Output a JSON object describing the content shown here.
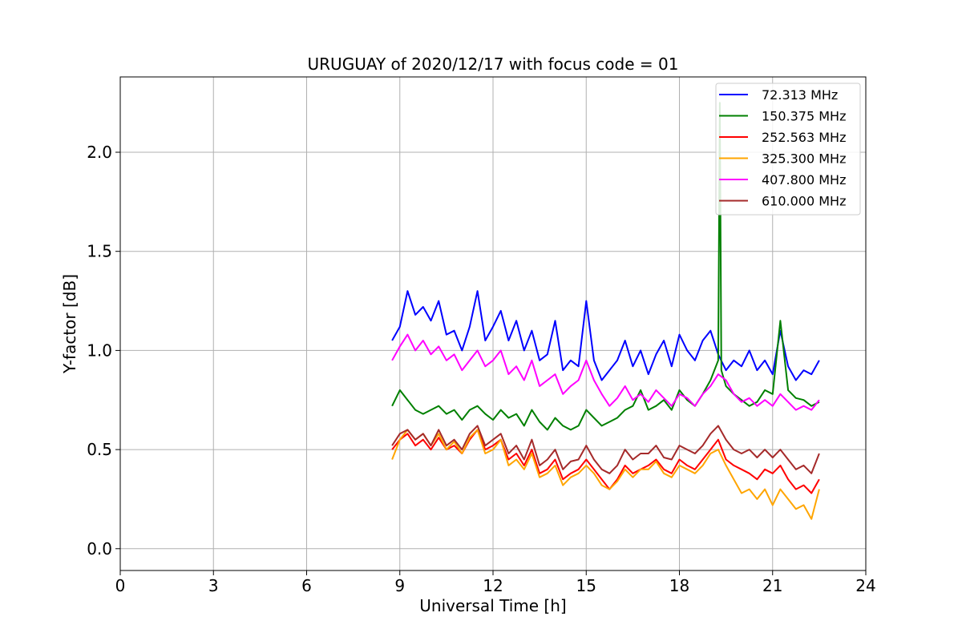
{
  "chart_data": {
    "type": "line",
    "title": "URUGUAY of 2020/12/17 with focus code = 01",
    "xlabel": "Universal Time [h]",
    "ylabel": "Y-factor [dB]",
    "xlim": [
      0,
      24
    ],
    "ylim": [
      -0.11,
      2.38
    ],
    "x_ticks": [
      0,
      3,
      6,
      9,
      12,
      15,
      18,
      21,
      24
    ],
    "y_ticks": [
      0.0,
      0.5,
      1.0,
      1.5,
      2.0
    ],
    "x_tick_labels": [
      "0",
      "3",
      "6",
      "9",
      "12",
      "15",
      "18",
      "21",
      "24"
    ],
    "y_tick_labels": [
      "0.0",
      "0.5",
      "1.0",
      "1.5",
      "2.0"
    ],
    "grid": true,
    "legend_position": "top-right",
    "series": [
      {
        "name": " 72.313 MHz",
        "color": "#0000ff",
        "x": [
          8.75,
          9.0,
          9.25,
          9.5,
          9.75,
          10.0,
          10.25,
          10.5,
          10.75,
          11.0,
          11.25,
          11.5,
          11.75,
          12.0,
          12.25,
          12.5,
          12.75,
          13.0,
          13.25,
          13.5,
          13.75,
          14.0,
          14.25,
          14.5,
          14.75,
          15.0,
          15.25,
          15.5,
          15.75,
          16.0,
          16.25,
          16.5,
          16.75,
          17.0,
          17.25,
          17.5,
          17.75,
          18.0,
          18.25,
          18.5,
          18.75,
          19.0,
          19.25,
          19.5,
          19.75,
          20.0,
          20.25,
          20.5,
          20.75,
          21.0,
          21.25,
          21.5,
          21.75,
          22.0,
          22.25,
          22.5
        ],
        "y": [
          1.05,
          1.12,
          1.3,
          1.18,
          1.22,
          1.15,
          1.25,
          1.08,
          1.1,
          1.0,
          1.12,
          1.3,
          1.05,
          1.12,
          1.2,
          1.05,
          1.15,
          1.0,
          1.1,
          0.95,
          0.98,
          1.15,
          0.9,
          0.95,
          0.92,
          1.25,
          0.95,
          0.85,
          0.9,
          0.95,
          1.05,
          0.92,
          1.0,
          0.88,
          0.98,
          1.05,
          0.92,
          1.08,
          1.0,
          0.95,
          1.05,
          1.1,
          0.98,
          0.9,
          0.95,
          0.92,
          1.0,
          0.9,
          0.95,
          0.88,
          1.1,
          0.92,
          0.85,
          0.9,
          0.88,
          0.95
        ]
      },
      {
        "name": "150.375 MHz",
        "color": "#008000",
        "x": [
          8.75,
          9.0,
          9.25,
          9.5,
          9.75,
          10.0,
          10.25,
          10.5,
          10.75,
          11.0,
          11.25,
          11.5,
          11.75,
          12.0,
          12.25,
          12.5,
          12.75,
          13.0,
          13.25,
          13.5,
          13.75,
          14.0,
          14.25,
          14.5,
          14.75,
          15.0,
          15.25,
          15.5,
          15.75,
          16.0,
          16.25,
          16.5,
          16.75,
          17.0,
          17.25,
          17.5,
          17.75,
          18.0,
          18.25,
          18.5,
          18.75,
          19.0,
          19.25,
          19.3,
          19.35,
          19.5,
          19.75,
          20.0,
          20.25,
          20.5,
          20.75,
          21.0,
          21.25,
          21.5,
          21.75,
          22.0,
          22.25,
          22.5
        ],
        "y": [
          0.72,
          0.8,
          0.75,
          0.7,
          0.68,
          0.7,
          0.72,
          0.68,
          0.7,
          0.65,
          0.7,
          0.72,
          0.68,
          0.65,
          0.7,
          0.66,
          0.68,
          0.62,
          0.7,
          0.64,
          0.6,
          0.66,
          0.62,
          0.6,
          0.62,
          0.7,
          0.66,
          0.62,
          0.64,
          0.66,
          0.7,
          0.72,
          0.8,
          0.7,
          0.72,
          0.75,
          0.7,
          0.8,
          0.75,
          0.72,
          0.78,
          0.85,
          0.95,
          2.25,
          0.9,
          0.82,
          0.78,
          0.75,
          0.72,
          0.74,
          0.8,
          0.78,
          1.15,
          0.8,
          0.76,
          0.75,
          0.72,
          0.74
        ]
      },
      {
        "name": "252.563 MHz",
        "color": "#ff0000",
        "x": [
          8.75,
          9.0,
          9.25,
          9.5,
          9.75,
          10.0,
          10.25,
          10.5,
          10.75,
          11.0,
          11.25,
          11.5,
          11.75,
          12.0,
          12.25,
          12.5,
          12.75,
          13.0,
          13.25,
          13.5,
          13.75,
          14.0,
          14.25,
          14.5,
          14.75,
          15.0,
          15.25,
          15.5,
          15.75,
          16.0,
          16.25,
          16.5,
          16.75,
          17.0,
          17.25,
          17.5,
          17.75,
          18.0,
          18.25,
          18.5,
          18.75,
          19.0,
          19.25,
          19.5,
          19.75,
          20.0,
          20.25,
          20.5,
          20.75,
          21.0,
          21.25,
          21.5,
          21.75,
          22.0,
          22.25,
          22.5
        ],
        "y": [
          0.5,
          0.55,
          0.58,
          0.52,
          0.55,
          0.5,
          0.56,
          0.5,
          0.52,
          0.48,
          0.55,
          0.6,
          0.5,
          0.52,
          0.55,
          0.45,
          0.48,
          0.42,
          0.5,
          0.38,
          0.4,
          0.45,
          0.35,
          0.38,
          0.4,
          0.45,
          0.4,
          0.35,
          0.3,
          0.35,
          0.42,
          0.38,
          0.4,
          0.42,
          0.45,
          0.4,
          0.38,
          0.45,
          0.42,
          0.4,
          0.45,
          0.5,
          0.55,
          0.45,
          0.42,
          0.4,
          0.38,
          0.35,
          0.4,
          0.38,
          0.42,
          0.35,
          0.3,
          0.32,
          0.28,
          0.35
        ]
      },
      {
        "name": "325.300 MHz",
        "color": "#ffa500",
        "x": [
          8.75,
          9.0,
          9.25,
          9.5,
          9.75,
          10.0,
          10.25,
          10.5,
          10.75,
          11.0,
          11.25,
          11.5,
          11.75,
          12.0,
          12.25,
          12.5,
          12.75,
          13.0,
          13.25,
          13.5,
          13.75,
          14.0,
          14.25,
          14.5,
          14.75,
          15.0,
          15.25,
          15.5,
          15.75,
          16.0,
          16.25,
          16.5,
          16.75,
          17.0,
          17.25,
          17.5,
          17.75,
          18.0,
          18.25,
          18.5,
          18.75,
          19.0,
          19.25,
          19.5,
          19.75,
          20.0,
          20.25,
          20.5,
          20.75,
          21.0,
          21.25,
          21.5,
          21.75,
          22.0,
          22.25,
          22.5
        ],
        "y": [
          0.45,
          0.55,
          0.6,
          0.55,
          0.58,
          0.52,
          0.58,
          0.5,
          0.54,
          0.48,
          0.56,
          0.6,
          0.48,
          0.5,
          0.55,
          0.42,
          0.45,
          0.4,
          0.48,
          0.36,
          0.38,
          0.42,
          0.32,
          0.36,
          0.38,
          0.42,
          0.38,
          0.32,
          0.3,
          0.34,
          0.4,
          0.36,
          0.4,
          0.4,
          0.44,
          0.38,
          0.36,
          0.42,
          0.4,
          0.38,
          0.42,
          0.48,
          0.5,
          0.42,
          0.35,
          0.28,
          0.3,
          0.25,
          0.3,
          0.22,
          0.3,
          0.25,
          0.2,
          0.22,
          0.15,
          0.3
        ]
      },
      {
        "name": "407.800 MHz",
        "color": "#ff00ff",
        "x": [
          8.75,
          9.0,
          9.25,
          9.5,
          9.75,
          10.0,
          10.25,
          10.5,
          10.75,
          11.0,
          11.25,
          11.5,
          11.75,
          12.0,
          12.25,
          12.5,
          12.75,
          13.0,
          13.25,
          13.5,
          13.75,
          14.0,
          14.25,
          14.5,
          14.75,
          15.0,
          15.25,
          15.5,
          15.75,
          16.0,
          16.25,
          16.5,
          16.75,
          17.0,
          17.25,
          17.5,
          17.75,
          18.0,
          18.25,
          18.5,
          18.75,
          19.0,
          19.25,
          19.5,
          19.75,
          20.0,
          20.25,
          20.5,
          20.75,
          21.0,
          21.25,
          21.5,
          21.75,
          22.0,
          22.25,
          22.5
        ],
        "y": [
          0.95,
          1.02,
          1.08,
          1.0,
          1.05,
          0.98,
          1.02,
          0.95,
          0.98,
          0.9,
          0.95,
          1.0,
          0.92,
          0.95,
          1.0,
          0.88,
          0.92,
          0.85,
          0.95,
          0.82,
          0.85,
          0.88,
          0.78,
          0.82,
          0.85,
          0.95,
          0.85,
          0.78,
          0.72,
          0.76,
          0.82,
          0.75,
          0.78,
          0.74,
          0.8,
          0.76,
          0.72,
          0.78,
          0.76,
          0.72,
          0.78,
          0.82,
          0.88,
          0.85,
          0.78,
          0.74,
          0.76,
          0.72,
          0.75,
          0.72,
          0.78,
          0.74,
          0.7,
          0.72,
          0.7,
          0.75
        ]
      },
      {
        "name": "610.000 MHz",
        "color": "#a52a2a",
        "x": [
          8.75,
          9.0,
          9.25,
          9.5,
          9.75,
          10.0,
          10.25,
          10.5,
          10.75,
          11.0,
          11.25,
          11.5,
          11.75,
          12.0,
          12.25,
          12.5,
          12.75,
          13.0,
          13.25,
          13.5,
          13.75,
          14.0,
          14.25,
          14.5,
          14.75,
          15.0,
          15.25,
          15.5,
          15.75,
          16.0,
          16.25,
          16.5,
          16.75,
          17.0,
          17.25,
          17.5,
          17.75,
          18.0,
          18.25,
          18.5,
          18.75,
          19.0,
          19.25,
          19.5,
          19.75,
          20.0,
          20.25,
          20.5,
          20.75,
          21.0,
          21.25,
          21.5,
          21.75,
          22.0,
          22.25,
          22.5
        ],
        "y": [
          0.52,
          0.58,
          0.6,
          0.55,
          0.58,
          0.52,
          0.6,
          0.52,
          0.55,
          0.5,
          0.58,
          0.62,
          0.52,
          0.55,
          0.58,
          0.48,
          0.52,
          0.45,
          0.55,
          0.42,
          0.45,
          0.5,
          0.4,
          0.44,
          0.45,
          0.52,
          0.45,
          0.4,
          0.38,
          0.42,
          0.5,
          0.45,
          0.48,
          0.48,
          0.52,
          0.46,
          0.45,
          0.52,
          0.5,
          0.48,
          0.52,
          0.58,
          0.62,
          0.55,
          0.5,
          0.48,
          0.5,
          0.46,
          0.5,
          0.46,
          0.5,
          0.45,
          0.4,
          0.42,
          0.38,
          0.48
        ]
      }
    ]
  }
}
